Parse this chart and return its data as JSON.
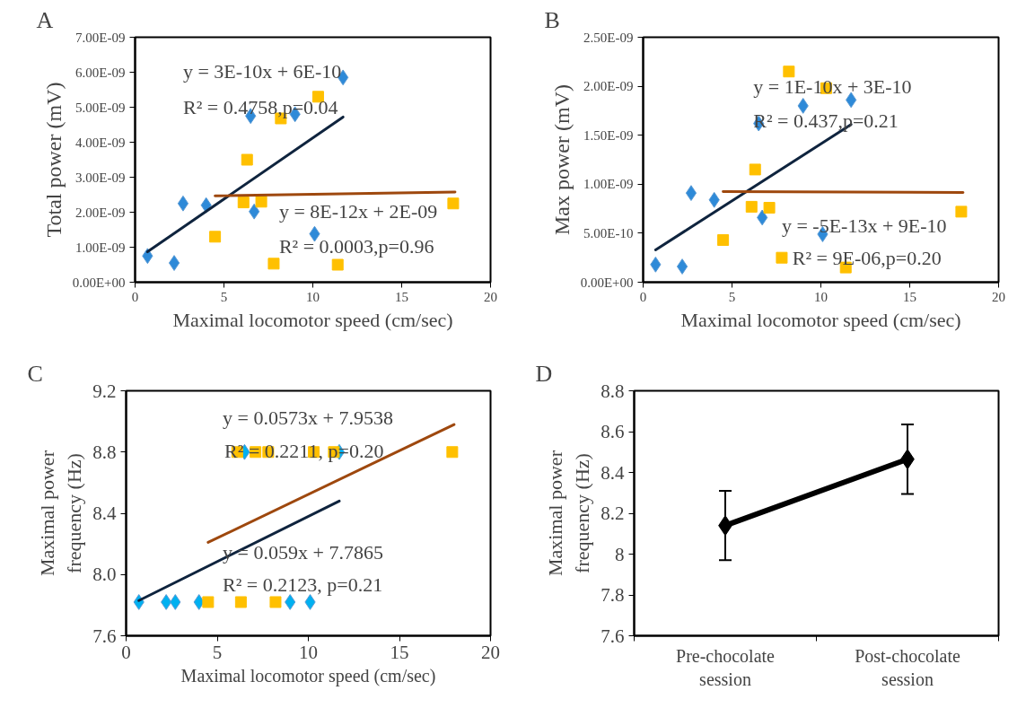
{
  "chart_data": [
    {
      "type": "scatter",
      "title": "A",
      "xlabel": "Maximal locomotor speed (cm/sec)",
      "ylabel": "Total power (mV)",
      "xlim": [
        0,
        20
      ],
      "xticks": [
        0,
        5,
        10,
        15,
        20
      ],
      "ylim": [
        0,
        7e-09
      ],
      "yticks": [
        {
          "value": 0,
          "label": "0.00E+00"
        },
        {
          "value": 1e-09,
          "label": "1.00E-09"
        },
        {
          "value": 2e-09,
          "label": "2.00E-09"
        },
        {
          "value": 3e-09,
          "label": "3.00E-09"
        },
        {
          "value": 4e-09,
          "label": "4.00E-09"
        },
        {
          "value": 5e-09,
          "label": "5.00E-09"
        },
        {
          "value": 6e-09,
          "label": "6.00E-09"
        },
        {
          "value": 7e-09,
          "label": "7.00E-09"
        }
      ],
      "grid": false,
      "series": [
        {
          "type": "scatter",
          "marker": "diamond",
          "color": "#2e8ad8",
          "x": [
            0.7,
            2.2,
            2.7,
            4.0,
            6.5,
            6.7,
            9.0,
            10.1,
            11.7
          ],
          "values": [
            7.5e-10,
            5.5e-10,
            2.25e-09,
            2.2e-09,
            4.75e-09,
            2.02e-09,
            4.8e-09,
            1.38e-09,
            5.85e-09
          ]
        },
        {
          "type": "scatter",
          "marker": "square",
          "color": "#ffc000",
          "x": [
            4.5,
            6.1,
            6.3,
            7.1,
            7.8,
            8.2,
            10.3,
            11.4,
            17.9
          ],
          "values": [
            1.3e-09,
            2.28e-09,
            3.5e-09,
            2.3e-09,
            5.3e-10,
            4.68e-09,
            5.3e-09,
            5e-10,
            2.25e-09
          ]
        },
        {
          "type": "line",
          "color": "#0f243e",
          "x": [
            0.7,
            11.7
          ],
          "values": [
            8.7e-10,
            4.72e-09
          ]
        },
        {
          "type": "line",
          "color": "#9e480e",
          "x": [
            4.5,
            18
          ],
          "values": [
            2.47e-09,
            2.58e-09
          ]
        }
      ],
      "annotations": [
        "y = 3E-10x + 6E-10",
        "R² = 0.4758,p=0.04",
        "y = 8E-12x + 2E-09",
        "R² = 0.0003,p=0.96"
      ]
    },
    {
      "type": "scatter",
      "title": "B",
      "xlabel": "Maximal locomotor speed (cm/sec)",
      "ylabel": "Max power (mV)",
      "xlim": [
        0,
        20
      ],
      "xticks": [
        0,
        5,
        10,
        15,
        20
      ],
      "ylim": [
        0,
        2.5e-09
      ],
      "yticks": [
        {
          "value": 0,
          "label": "0.00E+00"
        },
        {
          "value": 5e-10,
          "label": "5.00E-10"
        },
        {
          "value": 1e-09,
          "label": "1.00E-09"
        },
        {
          "value": 1.5e-09,
          "label": "1.50E-09"
        },
        {
          "value": 2e-09,
          "label": "2.00E-09"
        },
        {
          "value": 2.5e-09,
          "label": "2.50E-09"
        }
      ],
      "grid": false,
      "series": [
        {
          "type": "scatter",
          "marker": "diamond",
          "color": "#2e8ad8",
          "x": [
            0.7,
            2.2,
            2.7,
            4.0,
            6.5,
            6.7,
            9.0,
            10.1,
            11.7
          ],
          "values": [
            1.8e-10,
            1.6e-10,
            9.1e-10,
            8.4e-10,
            1.62e-09,
            6.6e-10,
            1.8e-09,
            4.9e-10,
            1.86e-09
          ]
        },
        {
          "type": "scatter",
          "marker": "square",
          "color": "#ffc000",
          "x": [
            4.5,
            6.1,
            6.3,
            7.1,
            7.8,
            8.2,
            10.3,
            11.4,
            17.9
          ],
          "values": [
            4.3e-10,
            7.7e-10,
            1.15e-09,
            7.6e-10,
            2.5e-10,
            2.15e-09,
            1.98e-09,
            1.5e-10,
            7.2e-10
          ]
        },
        {
          "type": "line",
          "color": "#0f243e",
          "x": [
            0.7,
            11.7
          ],
          "values": [
            3.3e-10,
            1.61e-09
          ]
        },
        {
          "type": "line",
          "color": "#9e480e",
          "x": [
            4.5,
            18
          ],
          "values": [
            9.25e-10,
            9.15e-10
          ]
        }
      ],
      "annotations": [
        "y = 1E-10x + 3E-10",
        "R² = 0.437,p=0.21",
        "y = -5E-13x + 9E-10",
        "R² = 9E-06,p=0.20"
      ]
    },
    {
      "type": "scatter",
      "title": "C",
      "xlabel": "Maximal locomotor speed (cm/sec)",
      "ylabel": "Maximal power\nfrequency (Hz)",
      "xlim": [
        0,
        20
      ],
      "xticks": [
        0,
        5,
        10,
        15,
        20
      ],
      "ylim": [
        7.6,
        9.2
      ],
      "yticks": [
        7.6,
        {
          "value": 8,
          "label": "8.0"
        },
        8.4,
        8.8,
        9.2
      ],
      "grid": false,
      "series": [
        {
          "type": "scatter",
          "marker": "diamond",
          "color": "#00b0f0",
          "x": [
            0.7,
            2.2,
            2.7,
            4.0,
            6.5,
            9.0,
            10.1,
            11.7
          ],
          "values": [
            7.82,
            7.82,
            7.82,
            7.82,
            8.8,
            7.82,
            7.82,
            8.8
          ]
        },
        {
          "type": "scatter",
          "marker": "square",
          "color": "#ffc000",
          "x": [
            4.5,
            6.1,
            6.3,
            7.1,
            7.8,
            8.2,
            10.3,
            11.4,
            17.9
          ],
          "values": [
            7.82,
            8.8,
            7.82,
            8.8,
            8.8,
            7.82,
            8.8,
            8.8,
            8.8
          ]
        },
        {
          "type": "line",
          "color": "#0f243e",
          "x": [
            0.7,
            11.7
          ],
          "values": [
            7.83,
            8.48
          ]
        },
        {
          "type": "line",
          "color": "#9e480e",
          "x": [
            4.5,
            18
          ],
          "values": [
            8.21,
            8.98
          ]
        }
      ],
      "annotations": [
        "y = 0.0573x + 7.9538",
        "R² = 0.2211, p=0.20",
        "y = 0.059x + 7.7865",
        "R² = 0.2123, p=0.21"
      ]
    },
    {
      "type": "line",
      "title": "D",
      "ylabel": "Maximal power\nfrequency (Hz)",
      "categories": [
        "Pre-chocolate\nsession",
        "Post-chocolate\nsession"
      ],
      "values": [
        8.14,
        8.465
      ],
      "errors": [
        0.17,
        0.17
      ],
      "color": "#000000",
      "marker": "diamond",
      "ylim": [
        7.6,
        8.8
      ],
      "yticks": [
        7.6,
        7.8,
        8,
        8.2,
        8.4,
        8.6,
        8.8
      ],
      "grid": false
    }
  ]
}
